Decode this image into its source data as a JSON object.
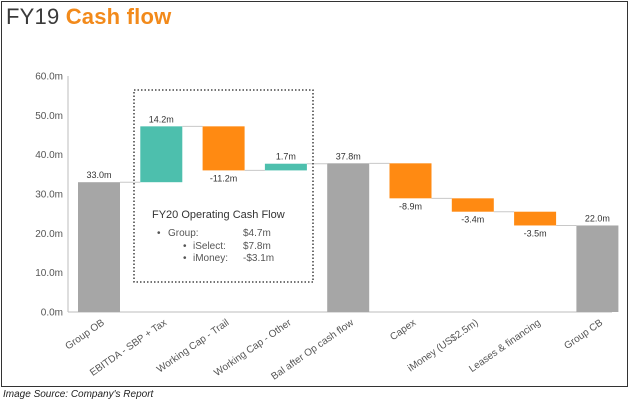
{
  "title": {
    "prefix": "FY19",
    "main": "Cash flow"
  },
  "source": "Image Source: Company's Report",
  "colors": {
    "total": "#a6a6a6",
    "increase": "#4dbfad",
    "decrease": "#ff8a12",
    "title_accent": "#f28a1b"
  },
  "chart_data": {
    "type": "waterfall",
    "title": "",
    "xlabel": "",
    "ylabel": "",
    "ylim": [
      0,
      60
    ],
    "yticks": [
      "0.0m",
      "10.0m",
      "20.0m",
      "30.0m",
      "40.0m",
      "50.0m",
      "60.0m"
    ],
    "grid": false,
    "categories": [
      "Group OB",
      "EBITDA - SBP + Tax",
      "Working Cap - Trail",
      "Working Cap - Other",
      "Bal after Op cash flow",
      "Capex",
      "iMoney (US$2.5m)",
      "Leases & financing",
      "Group CB"
    ],
    "bars": [
      {
        "kind": "total",
        "start": 0,
        "end": 33.0,
        "label": "33.0m"
      },
      {
        "kind": "increase",
        "start": 33.0,
        "end": 47.2,
        "label": "14.2m"
      },
      {
        "kind": "decrease",
        "start": 47.2,
        "end": 36.0,
        "label": "-11.2m"
      },
      {
        "kind": "increase",
        "start": 36.0,
        "end": 37.7,
        "label": "1.7m"
      },
      {
        "kind": "total",
        "start": 0,
        "end": 37.8,
        "label": "37.8m"
      },
      {
        "kind": "decrease",
        "start": 37.8,
        "end": 28.9,
        "label": "-8.9m"
      },
      {
        "kind": "decrease",
        "start": 28.9,
        "end": 25.5,
        "label": "-3.4m"
      },
      {
        "kind": "decrease",
        "start": 25.5,
        "end": 22.0,
        "label": "-3.5m"
      },
      {
        "kind": "total",
        "start": 0,
        "end": 22.0,
        "label": "22.0m"
      }
    ],
    "annotation": {
      "title": "FY20 Operating Cash Flow",
      "rows": [
        {
          "bullet": "•",
          "label": "Group:",
          "value": "$4.7m"
        },
        {
          "bullet": "•",
          "label": "iSelect:",
          "value": "$7.8m"
        },
        {
          "bullet": "•",
          "label": "iMoney:",
          "value": "-$3.1m"
        }
      ]
    }
  }
}
